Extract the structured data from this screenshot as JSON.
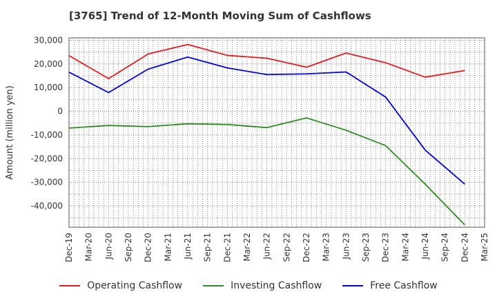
{
  "title": "[3765]  Trend of 12-Month Moving Sum of Cashflows",
  "chart_data": {
    "type": "line",
    "title": "[3765]  Trend of 12-Month Moving Sum of Cashflows",
    "xlabel": "",
    "ylabel": "Amount (million yen)",
    "x_ticks": [
      "Dec-19",
      "Mar-20",
      "Jun-20",
      "Sep-20",
      "Dec-20",
      "Mar-21",
      "Jun-21",
      "Sep-21",
      "Dec-21",
      "Mar-22",
      "Jun-22",
      "Sep-22",
      "Dec-22",
      "Mar-23",
      "Jun-23",
      "Sep-23",
      "Dec-23",
      "Mar-24",
      "Jun-24",
      "Sep-24",
      "Dec-24",
      "Mar-25"
    ],
    "y_ticks": [
      30000,
      20000,
      10000,
      0,
      -10000,
      -20000,
      -30000,
      -40000
    ],
    "y_tick_labels": [
      "30,000",
      "20,000",
      "10,000",
      "0",
      "-10,000",
      "-20,000",
      "-30,000",
      "-40,000"
    ],
    "ylim": [
      -49000,
      31000
    ],
    "grid": true,
    "legend_position": "bottom",
    "x": [
      "Dec-19",
      "Jun-20",
      "Dec-20",
      "Jun-21",
      "Dec-21",
      "Jun-22",
      "Dec-22",
      "Jun-23",
      "Dec-23",
      "Jun-24",
      "Dec-24"
    ],
    "series": [
      {
        "name": "Operating Cashflow",
        "color": "#e41a1c",
        "values": [
          23500,
          13800,
          24200,
          28200,
          23600,
          22400,
          18600,
          24600,
          20500,
          14400,
          17200
        ]
      },
      {
        "name": "Investing Cashflow",
        "color": "#2e8b22",
        "values": [
          -7100,
          -6000,
          -6500,
          -5300,
          -5600,
          -6900,
          -2800,
          -8000,
          -14500,
          -30800,
          -48000
        ]
      },
      {
        "name": "Free Cashflow",
        "color": "#0000d6",
        "values": [
          16500,
          7900,
          17800,
          22900,
          18300,
          15500,
          15800,
          16600,
          6000,
          -16400,
          -30800
        ]
      }
    ]
  }
}
